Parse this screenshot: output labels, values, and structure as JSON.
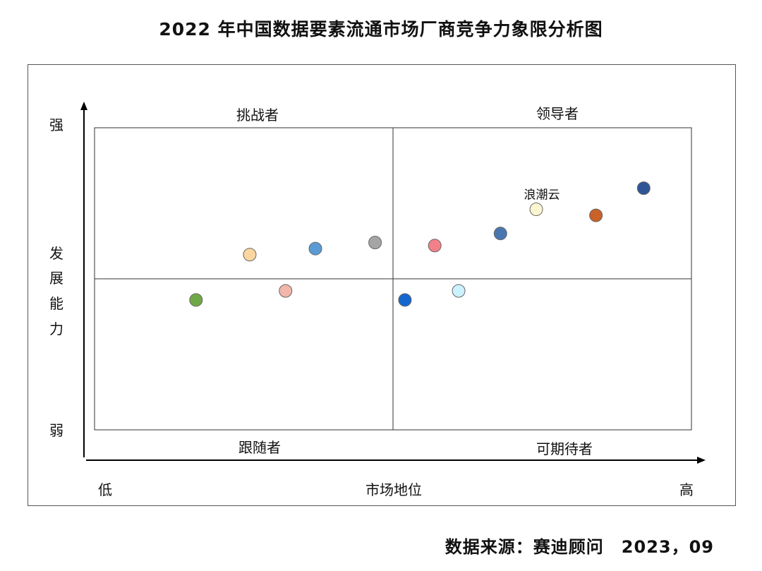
{
  "chart_data": {
    "type": "scatter",
    "title": "2022 年中国数据要素流通市场厂商竞争力象限分析图",
    "xlabel": "市场地位",
    "x_low": "低",
    "x_high": "高",
    "ylabel": [
      "发",
      "展",
      "能",
      "力"
    ],
    "y_low": "弱",
    "y_high": "强",
    "xlim": [
      0,
      100
    ],
    "ylim": [
      0,
      100
    ],
    "quadrants": {
      "top_left": "挑战者",
      "top_right": "领导者",
      "bottom_left": "跟随者",
      "bottom_right": "可期待者"
    },
    "points": [
      {
        "x": 17,
        "y": 43,
        "color": "#70a847",
        "label": ""
      },
      {
        "x": 26,
        "y": 58,
        "color": "#fbd6a0",
        "label": ""
      },
      {
        "x": 32,
        "y": 46,
        "color": "#f2b6aa",
        "label": ""
      },
      {
        "x": 37,
        "y": 60,
        "color": "#5b9bd5",
        "label": ""
      },
      {
        "x": 47,
        "y": 62,
        "color": "#a5a5a5",
        "label": ""
      },
      {
        "x": 52,
        "y": 43,
        "color": "#1567cd",
        "label": ""
      },
      {
        "x": 57,
        "y": 61,
        "color": "#f28088",
        "label": ""
      },
      {
        "x": 61,
        "y": 46,
        "color": "#ccf2ff",
        "label": ""
      },
      {
        "x": 68,
        "y": 65,
        "color": "#4a76b0",
        "label": ""
      },
      {
        "x": 74,
        "y": 73,
        "color": "#fbf6d0",
        "label": "浪潮云"
      },
      {
        "x": 84,
        "y": 71,
        "color": "#c86228",
        "label": ""
      },
      {
        "x": 92,
        "y": 80,
        "color": "#2f5597",
        "label": ""
      }
    ],
    "grid": false
  },
  "source": "数据来源：赛迪顾问　2023，09"
}
